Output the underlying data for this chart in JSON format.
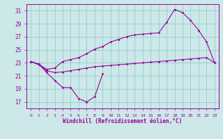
{
  "xlabel": "Windchill (Refroidissement éolien,°C)",
  "line_color": "#990099",
  "bg_color": "#cce8e8",
  "grid_color": "#99cccc",
  "ylim": [
    16,
    32
  ],
  "yticks": [
    17,
    19,
    21,
    23,
    25,
    27,
    29,
    31
  ],
  "xlim": [
    -0.5,
    23.5
  ],
  "line1_x": [
    0,
    1,
    2,
    3,
    4,
    5,
    6,
    7,
    8,
    9
  ],
  "line1_y": [
    23.2,
    22.8,
    21.5,
    20.3,
    19.2,
    19.2,
    17.5,
    17.0,
    17.8,
    21.3
  ],
  "line2_x": [
    0,
    1,
    2,
    3,
    4,
    5,
    6,
    7,
    8,
    9,
    10,
    11,
    12,
    13,
    14,
    15,
    16,
    17,
    18,
    19,
    20,
    21,
    22,
    23
  ],
  "line2_y": [
    23.2,
    22.8,
    22.0,
    22.2,
    23.2,
    23.5,
    23.8,
    24.4,
    25.1,
    25.5,
    26.2,
    26.6,
    27.0,
    27.3,
    27.4,
    27.5,
    27.6,
    29.2,
    31.2,
    30.7,
    29.5,
    28.0,
    26.2,
    23.0
  ],
  "line3_x": [
    0,
    1,
    2,
    3,
    4,
    5,
    6,
    7,
    8,
    9,
    10,
    11,
    12,
    13,
    14,
    15,
    16,
    17,
    18,
    19,
    20,
    21,
    22,
    23
  ],
  "line3_y": [
    23.2,
    22.7,
    21.8,
    21.5,
    21.6,
    21.8,
    22.0,
    22.2,
    22.4,
    22.5,
    22.6,
    22.7,
    22.8,
    22.9,
    23.0,
    23.1,
    23.2,
    23.3,
    23.4,
    23.5,
    23.6,
    23.7,
    23.8,
    23.0
  ]
}
